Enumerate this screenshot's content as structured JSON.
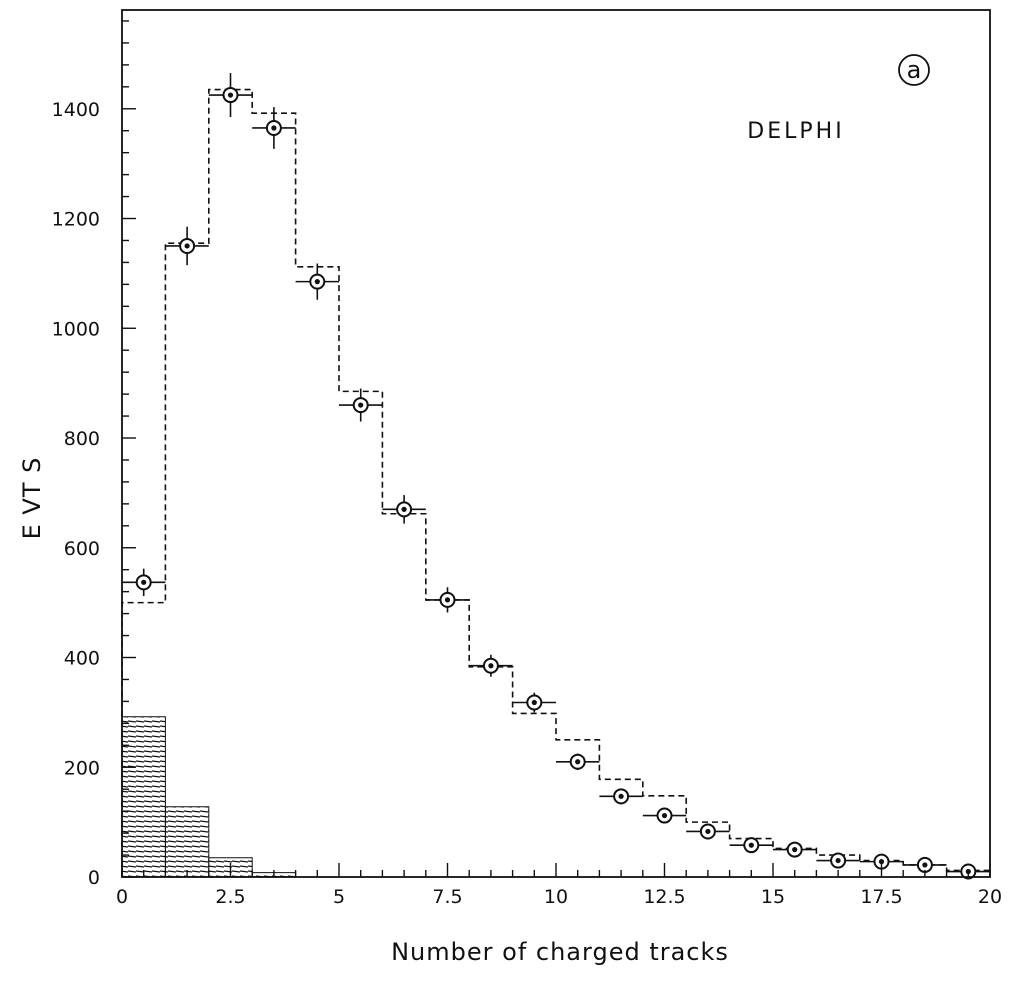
{
  "chart_data": {
    "type": "bar",
    "title": "",
    "xlabel": "Number of charged tracks",
    "ylabel": "E VT S",
    "xlim": [
      0,
      20
    ],
    "ylim": [
      0,
      1580
    ],
    "grid": false,
    "annotations": {
      "experiment": "DELPHI",
      "panel": "a"
    },
    "x_ticks": [
      0,
      2.5,
      5,
      7.5,
      10,
      12.5,
      15,
      17.5,
      20
    ],
    "x_tick_labels": [
      "0",
      "2.5",
      "5",
      "7.5",
      "10",
      "12.5",
      "15",
      "17.5",
      "20"
    ],
    "y_ticks": [
      0,
      200,
      400,
      600,
      800,
      1000,
      1200,
      1400
    ],
    "y_tick_labels": [
      "0",
      "200",
      "400",
      "600",
      "800",
      "1000",
      "1200",
      "1400"
    ],
    "bin_edges": [
      0,
      1,
      2,
      3,
      4,
      5,
      6,
      7,
      8,
      9,
      10,
      11,
      12,
      13,
      14,
      15,
      16,
      17,
      18,
      19,
      20
    ],
    "series": [
      {
        "style": "points",
        "x": [
          0.5,
          1.5,
          2.5,
          3.5,
          4.5,
          5.5,
          6.5,
          7.5,
          8.5,
          9.5,
          10.5,
          11.5,
          12.5,
          13.5,
          14.5,
          15.5,
          16.5,
          17.5,
          18.5,
          19.5
        ],
        "values": [
          537,
          1150,
          1425,
          1365,
          1085,
          860,
          670,
          505,
          385,
          318,
          210,
          147,
          112,
          83,
          58,
          50,
          30,
          28,
          22,
          10
        ],
        "errors": [
          25,
          35,
          40,
          38,
          33,
          30,
          26,
          23,
          20,
          18,
          15,
          12,
          11,
          9,
          8,
          7,
          6,
          5,
          5,
          3
        ]
      },
      {
        "style": "dashed-histogram",
        "values": [
          500,
          1155,
          1435,
          1392,
          1112,
          885,
          662,
          505,
          383,
          298,
          250,
          178,
          148,
          100,
          70,
          52,
          40,
          30,
          22,
          12
        ]
      },
      {
        "style": "hatched-histogram",
        "values": [
          292,
          128,
          35,
          8
        ]
      }
    ]
  }
}
